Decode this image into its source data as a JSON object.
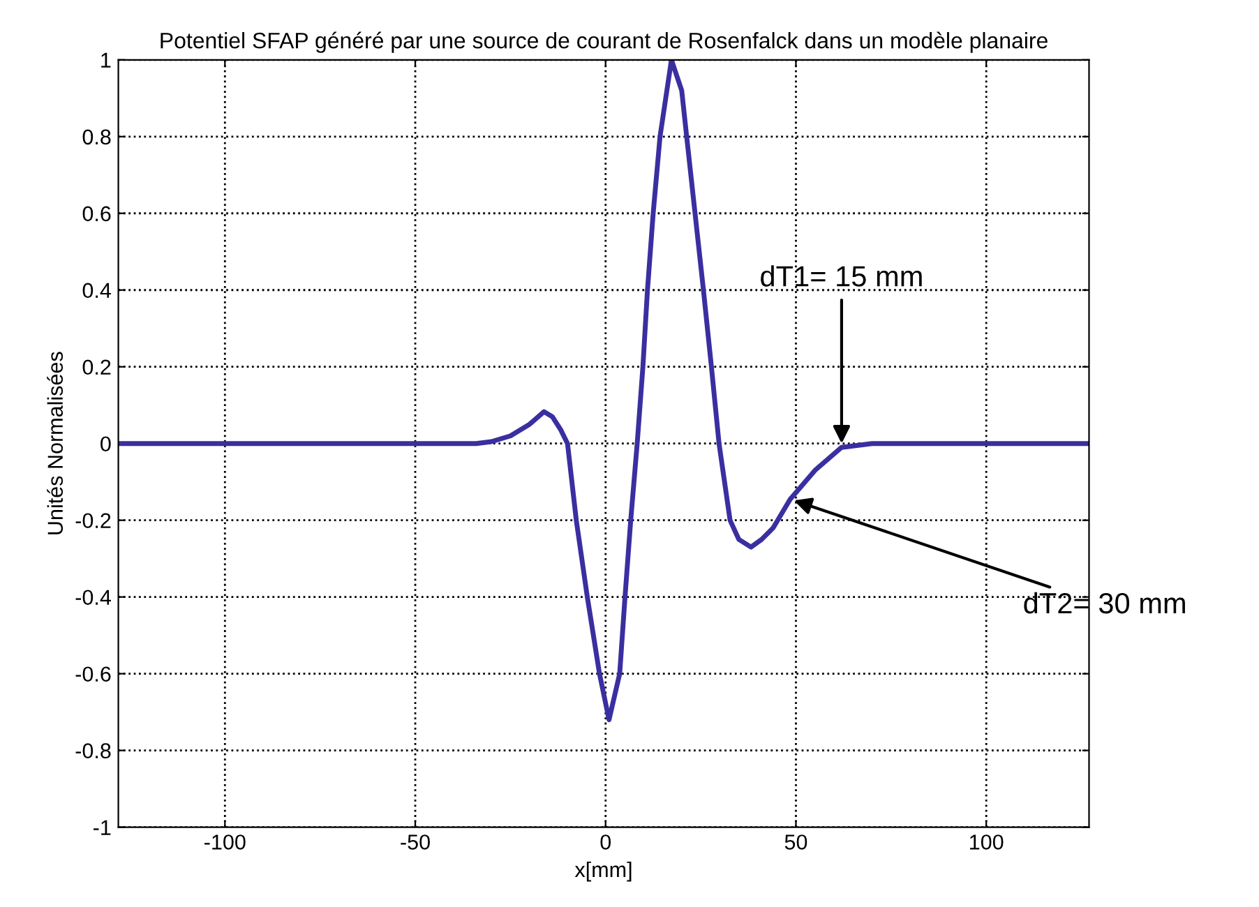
{
  "chart_data": {
    "type": "line",
    "title": "Potentiel SFAP généré par une source de courant de Rosenfalck dans un modèle planaire",
    "xlabel": "x[mm]",
    "ylabel": "Unités Normalisées",
    "x": [
      -128,
      -40,
      -34,
      -30,
      -25,
      -20,
      -16.2,
      -14,
      -11.8,
      -10,
      -7.7,
      -4.8,
      -1.6,
      0.9,
      3.7,
      5.1,
      6.6,
      8.3,
      9.8,
      11,
      12.5,
      14.3,
      17.3,
      20,
      21.3,
      23.5,
      25.7,
      27.8,
      29.8,
      32.7,
      35,
      38.2,
      41,
      44,
      48.5,
      55,
      62,
      70,
      127
    ],
    "series": [
      {
        "color": "#3a2fa0",
        "values": [
          0,
          0,
          0,
          0.005,
          0.02,
          0.05,
          0.083,
          0.07,
          0.036,
          0,
          -0.2,
          -0.4,
          -0.6,
          -0.72,
          -0.6,
          -0.4,
          -0.2,
          0,
          0.2,
          0.4,
          0.6,
          0.8,
          1.0,
          0.92,
          0.8,
          0.6,
          0.4,
          0.2,
          0,
          -0.2,
          -0.25,
          -0.27,
          -0.25,
          -0.22,
          -0.145,
          -0.07,
          -0.01,
          0,
          0
        ]
      }
    ],
    "xlim": [
      -128,
      127
    ],
    "ylim": [
      -1,
      1
    ],
    "xticks": [
      -100,
      -50,
      0,
      50,
      100
    ],
    "yticks": [
      -1,
      -0.8,
      -0.6,
      -0.4,
      -0.2,
      0,
      0.2,
      0.4,
      0.6,
      0.8,
      1
    ],
    "grid": true,
    "line_style": "solid",
    "marker": "none",
    "annotations": [
      {
        "text": "dT1= 15 mm",
        "x": 62,
        "y": -0.01
      },
      {
        "text": "dT2= 30 mm",
        "x": 48.5,
        "y": -0.145
      }
    ]
  }
}
